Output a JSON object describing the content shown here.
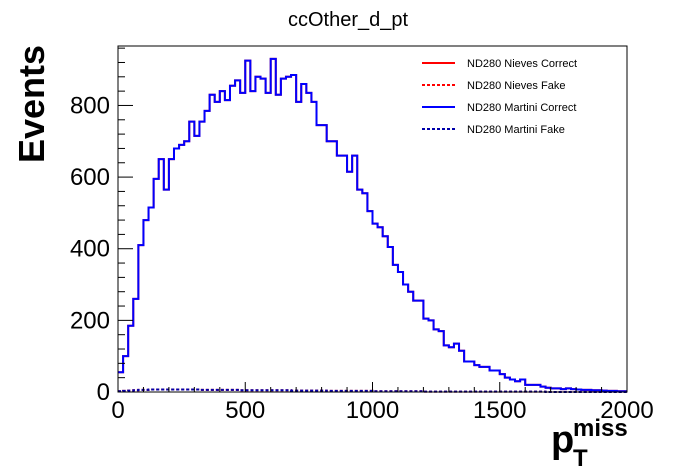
{
  "chart_data": {
    "type": "line",
    "title": "ccOther_d_pt",
    "ylabel": "Events",
    "xlabel_main": "p",
    "xlabel_sup": "miss",
    "xlabel_sub": "T",
    "xlim": [
      0,
      2000
    ],
    "ylim": [
      0,
      966
    ],
    "grid": false,
    "legend_position": "top-right",
    "x_ticks": [
      0,
      500,
      1000,
      1500,
      2000
    ],
    "y_ticks": [
      0,
      200,
      400,
      600,
      800
    ],
    "bin_width": 20,
    "series": [
      {
        "name": "ND280 Nieves Correct",
        "color": "#ff0000",
        "style": "solid",
        "values": [
          55,
          100,
          185,
          260,
          410,
          480,
          515,
          595,
          650,
          565,
          650,
          680,
          690,
          700,
          755,
          715,
          755,
          785,
          830,
          810,
          840,
          815,
          855,
          870,
          835,
          925,
          840,
          880,
          875,
          835,
          930,
          830,
          875,
          880,
          885,
          810,
          860,
          835,
          810,
          745,
          745,
          700,
          700,
          660,
          660,
          615,
          660,
          565,
          555,
          505,
          470,
          460,
          435,
          405,
          355,
          335,
          300,
          280,
          255,
          255,
          205,
          200,
          175,
          170,
          130,
          125,
          135,
          115,
          85,
          85,
          75,
          70,
          70,
          60,
          60,
          50,
          40,
          35,
          30,
          35,
          20,
          20,
          20,
          15,
          12,
          10,
          10,
          8,
          10,
          8,
          7,
          6,
          6,
          5,
          5,
          4,
          3,
          3,
          2,
          2
        ]
      },
      {
        "name": "ND280 Nieves Fake",
        "color": "#ff0000",
        "style": "dashed",
        "values": [
          2,
          3,
          4,
          5,
          6,
          6,
          7,
          7,
          7,
          7,
          7,
          7,
          7,
          7,
          7,
          7,
          6,
          6,
          6,
          6,
          6,
          6,
          6,
          6,
          5,
          5,
          5,
          5,
          5,
          5,
          5,
          5,
          5,
          5,
          4,
          4,
          4,
          4,
          4,
          4,
          4,
          3,
          3,
          3,
          3,
          3,
          3,
          3,
          3,
          3,
          2,
          2,
          2,
          2,
          2,
          2,
          2,
          2,
          2,
          2,
          1,
          1,
          1,
          1,
          1,
          1,
          1,
          1,
          1,
          1,
          1,
          1,
          1,
          1,
          1,
          1,
          1,
          1,
          1,
          1,
          1,
          1,
          1,
          1,
          0,
          0,
          0,
          0,
          0,
          0,
          0,
          0,
          0,
          0,
          0,
          0,
          0,
          0,
          0,
          0
        ]
      },
      {
        "name": "ND280 Martini Correct",
        "color": "#0000ff",
        "style": "solid",
        "values": [
          55,
          100,
          185,
          260,
          410,
          480,
          515,
          595,
          650,
          565,
          650,
          680,
          690,
          700,
          755,
          715,
          755,
          785,
          830,
          810,
          840,
          815,
          855,
          870,
          835,
          925,
          840,
          880,
          875,
          835,
          930,
          830,
          875,
          880,
          885,
          810,
          860,
          835,
          810,
          745,
          745,
          700,
          700,
          660,
          660,
          615,
          660,
          565,
          555,
          505,
          470,
          460,
          435,
          405,
          355,
          335,
          300,
          280,
          255,
          255,
          205,
          200,
          175,
          170,
          130,
          125,
          135,
          115,
          85,
          85,
          75,
          70,
          70,
          60,
          60,
          50,
          40,
          35,
          30,
          35,
          20,
          20,
          20,
          15,
          12,
          10,
          10,
          8,
          10,
          8,
          7,
          6,
          6,
          5,
          5,
          4,
          3,
          3,
          2,
          2
        ]
      },
      {
        "name": "ND280 Martini Fake",
        "color": "#0000aa",
        "style": "dashed",
        "values": [
          2,
          3,
          4,
          5,
          6,
          6,
          7,
          7,
          7,
          7,
          7,
          7,
          7,
          7,
          7,
          7,
          6,
          6,
          6,
          6,
          6,
          6,
          6,
          6,
          5,
          5,
          5,
          5,
          5,
          5,
          5,
          5,
          5,
          5,
          4,
          4,
          4,
          4,
          4,
          4,
          4,
          3,
          3,
          3,
          3,
          3,
          3,
          3,
          3,
          3,
          2,
          2,
          2,
          2,
          2,
          2,
          2,
          2,
          2,
          2,
          1,
          1,
          1,
          1,
          1,
          1,
          1,
          1,
          1,
          1,
          1,
          1,
          1,
          1,
          1,
          1,
          1,
          1,
          1,
          1,
          1,
          1,
          1,
          1,
          0,
          0,
          0,
          0,
          0,
          0,
          0,
          0,
          0,
          0,
          0,
          0,
          0,
          0,
          0,
          0
        ]
      }
    ]
  }
}
